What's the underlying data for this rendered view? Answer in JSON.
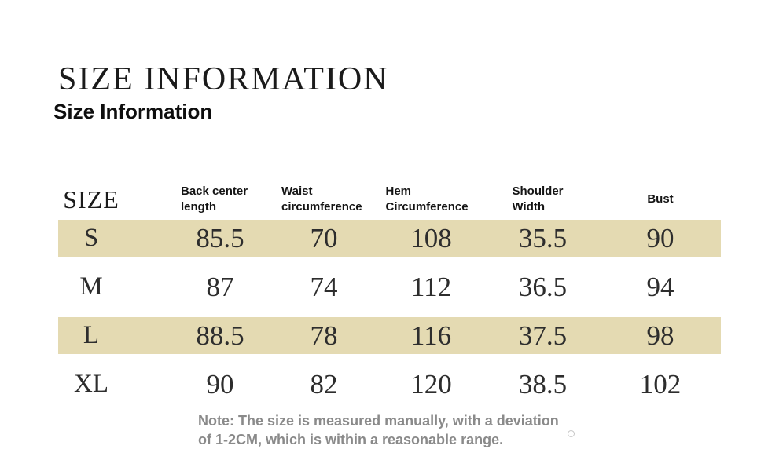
{
  "header": {
    "title": "SIZE INFORMATION",
    "subtitle": "Size Information"
  },
  "table": {
    "size_column_header": "SIZE",
    "columns": [
      "Back center length",
      "Waist circumference",
      "Hem Circumference",
      "Shoulder Width",
      "Bust"
    ],
    "rows": [
      {
        "size": "S",
        "highlighted": true,
        "values": [
          "85.5",
          "70",
          "108",
          "35.5",
          "90"
        ]
      },
      {
        "size": "M",
        "highlighted": false,
        "values": [
          "87",
          "74",
          "112",
          "36.5",
          "94"
        ]
      },
      {
        "size": "L",
        "highlighted": true,
        "values": [
          "88.5",
          "78",
          "116",
          "37.5",
          "98"
        ]
      },
      {
        "size": "XL",
        "highlighted": false,
        "values": [
          "90",
          "82",
          "120",
          "38.5",
          "102"
        ]
      }
    ],
    "highlight_color": "#e4dab2"
  },
  "note": {
    "text": "Note: The size is measured manually, with a deviation of 1-2CM, which is within a reasonable range."
  }
}
